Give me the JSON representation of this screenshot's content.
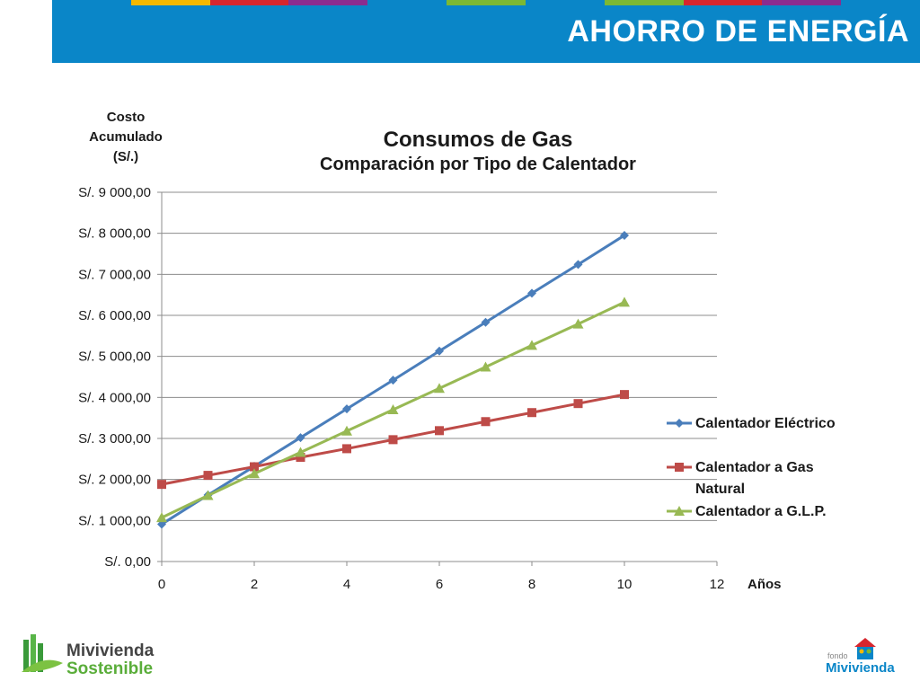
{
  "header": {
    "title": "AHORRO DE ENERGÍA",
    "stripe_colors": [
      "#0a86c8",
      "#f5b800",
      "#d7262e",
      "#8b2c8f",
      "#0a86c8",
      "#7cb833",
      "#0a86c8",
      "#7cb833",
      "#d7262e",
      "#8b2c8f",
      "#0a86c8"
    ]
  },
  "chart_data": {
    "type": "line",
    "title": "Consumos de Gas",
    "subtitle": "Comparación por Tipo de Calentador",
    "ylabel_lines": [
      "Costo",
      "Acumulado",
      "(S/.)"
    ],
    "xlabel": "Años",
    "xlim": [
      0,
      12
    ],
    "ylim": [
      0,
      9000
    ],
    "x_ticks": [
      "0",
      "2",
      "4",
      "6",
      "8",
      "10",
      "12"
    ],
    "x_tick_values": [
      0,
      2,
      4,
      6,
      8,
      10,
      12
    ],
    "y_ticks": [
      "S/. 0,00",
      "S/. 1 000,00",
      "S/. 2 000,00",
      "S/. 3 000,00",
      "S/. 4 000,00",
      "S/. 5 000,00",
      "S/. 6 000,00",
      "S/. 7 000,00",
      "S/. 8 000,00",
      "S/. 9 000,00"
    ],
    "y_tick_values": [
      0,
      1000,
      2000,
      3000,
      4000,
      5000,
      6000,
      7000,
      8000,
      9000
    ],
    "grid": "horizontal",
    "legend_position": "right",
    "x": [
      0,
      1,
      2,
      3,
      4,
      5,
      6,
      7,
      8,
      9,
      10
    ],
    "series": [
      {
        "name": "Calentador Eléctrico",
        "color": "#4a7ebb",
        "marker": "diamond",
        "values": [
          910,
          1620,
          2320,
          3020,
          3720,
          4420,
          5130,
          5830,
          6540,
          7240,
          7950
        ]
      },
      {
        "name": "Calentador a Gas Natural",
        "color": "#be4b48",
        "marker": "square",
        "values": [
          1880,
          2100,
          2310,
          2540,
          2750,
          2970,
          3190,
          3410,
          3630,
          3850,
          4070
        ]
      },
      {
        "name": "Calentador a G.L.P.",
        "color": "#98b954",
        "marker": "triangle",
        "values": [
          1070,
          1610,
          2140,
          2660,
          3180,
          3700,
          4220,
          4740,
          5270,
          5790,
          6320
        ]
      }
    ],
    "legend_lines": [
      [
        "Calentador Eléctrico"
      ],
      [
        "Calentador a Gas",
        "Natural"
      ],
      [
        "Calentador a G.L.P."
      ]
    ]
  },
  "footer": {
    "left_logo_line1": "Mivivienda",
    "left_logo_line2": "Sostenible",
    "right_logo_small": "fondo",
    "right_logo_main": "Mivivienda"
  }
}
